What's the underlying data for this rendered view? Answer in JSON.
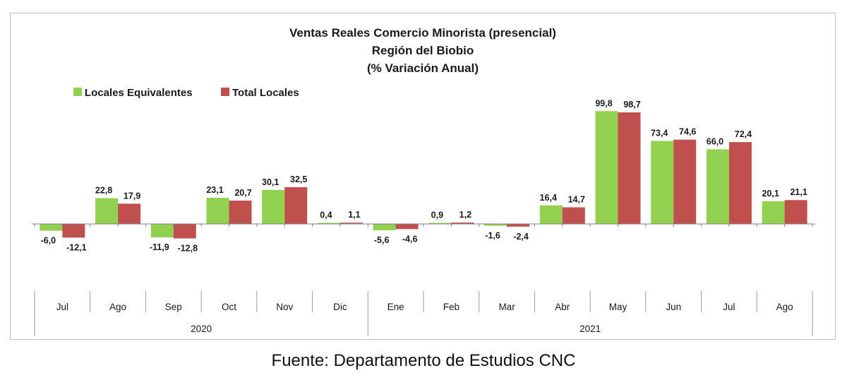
{
  "chart_data": {
    "type": "bar",
    "title_lines": [
      "Ventas Reales Comercio Minorista (presencial)",
      "Región del Biobio",
      "(% Variación Anual)"
    ],
    "categories": [
      "Jul",
      "Ago",
      "Sep",
      "Oct",
      "Nov",
      "Dic",
      "Ene",
      "Feb",
      "Mar",
      "Abr",
      "May",
      "Jun",
      "Jul",
      "Ago"
    ],
    "category_groups": [
      {
        "label": "2020",
        "count": 6
      },
      {
        "label": "2021",
        "count": 8
      }
    ],
    "series": [
      {
        "name": "Locales Equivalentes",
        "color": "#92d050",
        "values": [
          -6.0,
          22.8,
          -11.9,
          23.1,
          30.1,
          0.4,
          -5.6,
          0.9,
          -1.6,
          16.4,
          99.8,
          73.4,
          66.0,
          20.1
        ],
        "labels": [
          "-6,0",
          "22,8",
          "-11,9",
          "23,1",
          "30,1",
          "0,4",
          "-5,6",
          "0,9",
          "-1,6",
          "16,4",
          "99,8",
          "73,4",
          "66,0",
          "20,1"
        ]
      },
      {
        "name": "Total Locales",
        "color": "#c0504d",
        "values": [
          -12.1,
          17.9,
          -12.8,
          20.7,
          32.5,
          1.1,
          -4.6,
          1.2,
          -2.4,
          14.7,
          98.7,
          74.6,
          72.4,
          21.1
        ],
        "labels": [
          "-12,1",
          "17,9",
          "-12,8",
          "20,7",
          "32,5",
          "1,1",
          "-4,6",
          "1,2",
          "-2,4",
          "14,7",
          "98,7",
          "74,6",
          "72,4",
          "21,1"
        ]
      }
    ],
    "legend_position": "top-left",
    "gridlines": false
  },
  "source_note": "Fuente: Departamento de Estudios CNC"
}
